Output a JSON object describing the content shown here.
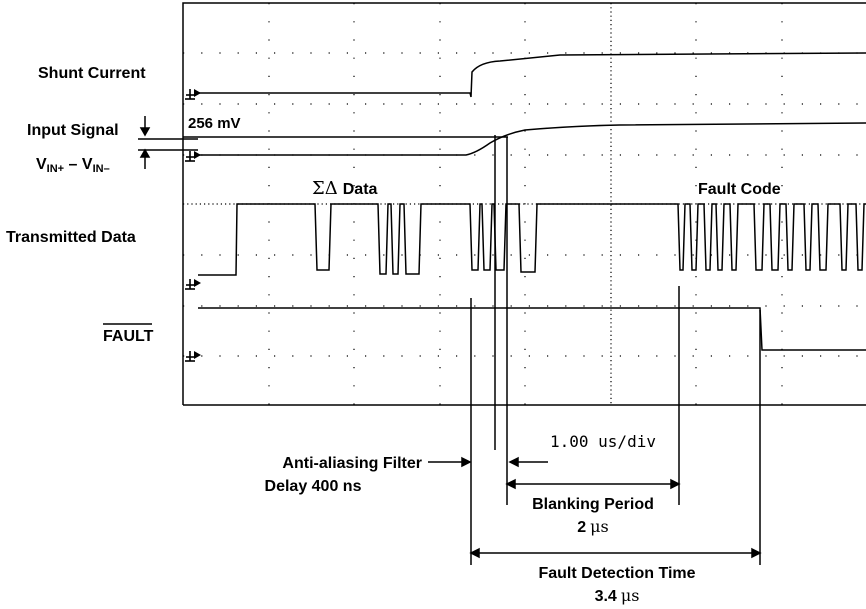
{
  "channels": {
    "shunt_current": "Shunt Current",
    "input_signal": "Input Signal",
    "vin_v1": "V",
    "vin_sub1": "IN+",
    "vin_dash": " – ",
    "vin_v2": "V",
    "vin_sub2": "IN–",
    "transmitted_data": "Transmitted Data",
    "fault": "FAULT"
  },
  "scope": {
    "voltage_label": "256 mV",
    "sigma_delta_symbol": "ΣΔ",
    "sigma_delta_word": "Data",
    "fault_code_label": "Fault Code",
    "timebase": "1.00 us/div"
  },
  "annotations": {
    "filter_line1": "Anti-aliasing Filter",
    "filter_line2": "Delay 400 ns",
    "blanking_line1": "Blanking Period",
    "blanking_value": "2",
    "blanking_unit": "μs",
    "detect_line1": "Fault Detection Time",
    "detect_value": "3.4",
    "detect_unit": "μs"
  }
}
